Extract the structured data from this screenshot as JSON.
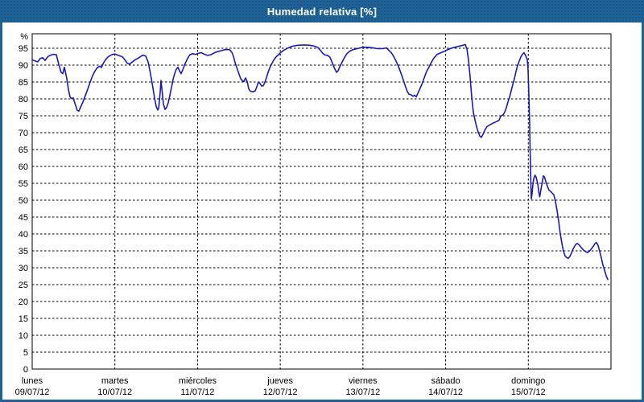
{
  "window": {
    "title": "Humedad relativa [%]"
  },
  "colors": {
    "titlebar_bg": "#1f6396",
    "titlebar_text": "#ffffff",
    "frame_border": "#1f6396",
    "content_bg": "#fdfefd",
    "grid": "#000000",
    "axis": "#000000",
    "line": "#1a1ab8",
    "label_text": "#000000"
  },
  "chart_data": {
    "type": "line",
    "title": "Humedad relativa [%]",
    "y_unit_label": "%",
    "yticks": [
      0,
      5,
      10,
      15,
      20,
      25,
      30,
      35,
      40,
      45,
      50,
      55,
      60,
      65,
      70,
      75,
      80,
      85,
      90,
      95
    ],
    "ylim": [
      0,
      99.3
    ],
    "grid": "dashed",
    "legend_position": "none",
    "x_categories": [
      {
        "day": "lunes",
        "date": "09/07/12"
      },
      {
        "day": "martes",
        "date": "10/07/12"
      },
      {
        "day": "miércoles",
        "date": "11/07/12"
      },
      {
        "day": "jueves",
        "date": "12/07/12"
      },
      {
        "day": "viernes",
        "date": "13/07/12"
      },
      {
        "day": "sábado",
        "date": "14/07/12"
      },
      {
        "day": "domingo",
        "date": "15/07/12"
      }
    ],
    "x_unit": "days_from_start",
    "series": [
      {
        "name": "Humedad relativa",
        "color": "#1a1ab8",
        "points": [
          [
            0.0,
            91.6
          ],
          [
            0.039,
            91.2
          ],
          [
            0.068,
            91.0
          ],
          [
            0.097,
            92.0
          ],
          [
            0.127,
            92.2
          ],
          [
            0.156,
            91.4
          ],
          [
            0.185,
            92.4
          ],
          [
            0.214,
            92.9
          ],
          [
            0.253,
            93.2
          ],
          [
            0.292,
            93.1
          ],
          [
            0.321,
            90.2
          ],
          [
            0.35,
            87.9
          ],
          [
            0.37,
            87.5
          ],
          [
            0.389,
            89.4
          ],
          [
            0.419,
            86.0
          ],
          [
            0.438,
            82.8
          ],
          [
            0.458,
            80.6
          ],
          [
            0.477,
            80.1
          ],
          [
            0.497,
            80.3
          ],
          [
            0.506,
            79.5
          ],
          [
            0.526,
            78.0
          ],
          [
            0.545,
            76.6
          ],
          [
            0.565,
            76.4
          ],
          [
            0.584,
            77.5
          ],
          [
            0.613,
            79.1
          ],
          [
            0.643,
            81.0
          ],
          [
            0.672,
            82.9
          ],
          [
            0.701,
            85.0
          ],
          [
            0.73,
            86.9
          ],
          [
            0.759,
            88.3
          ],
          [
            0.789,
            89.3
          ],
          [
            0.818,
            89.7
          ],
          [
            0.837,
            89.3
          ],
          [
            0.857,
            90.4
          ],
          [
            0.886,
            91.6
          ],
          [
            0.915,
            92.4
          ],
          [
            0.944,
            92.9
          ],
          [
            0.974,
            93.2
          ],
          [
            1.003,
            93.3
          ],
          [
            1.042,
            92.9
          ],
          [
            1.09,
            92.5
          ],
          [
            1.12,
            91.6
          ],
          [
            1.149,
            90.6
          ],
          [
            1.178,
            90.3
          ],
          [
            1.207,
            90.9
          ],
          [
            1.246,
            91.6
          ],
          [
            1.285,
            92.1
          ],
          [
            1.314,
            92.6
          ],
          [
            1.343,
            93.0
          ],
          [
            1.373,
            92.7
          ],
          [
            1.402,
            91.0
          ],
          [
            1.421,
            88.6
          ],
          [
            1.441,
            86.0
          ],
          [
            1.46,
            83.2
          ],
          [
            1.48,
            80.3
          ],
          [
            1.499,
            77.8
          ],
          [
            1.519,
            76.7
          ],
          [
            1.529,
            77.2
          ],
          [
            1.548,
            82.0
          ],
          [
            1.558,
            85.5
          ],
          [
            1.568,
            83.0
          ],
          [
            1.587,
            78.5
          ],
          [
            1.606,
            76.9
          ],
          [
            1.626,
            77.5
          ],
          [
            1.645,
            78.9
          ],
          [
            1.665,
            81.1
          ],
          [
            1.684,
            83.4
          ],
          [
            1.704,
            85.8
          ],
          [
            1.723,
            87.5
          ],
          [
            1.743,
            88.8
          ],
          [
            1.762,
            89.4
          ],
          [
            1.782,
            88.3
          ],
          [
            1.801,
            87.5
          ],
          [
            1.821,
            88.6
          ],
          [
            1.85,
            90.5
          ],
          [
            1.879,
            92.0
          ],
          [
            1.908,
            93.1
          ],
          [
            1.937,
            93.4
          ],
          [
            1.976,
            93.2
          ],
          [
            2.006,
            93.5
          ],
          [
            2.045,
            93.7
          ],
          [
            2.084,
            93.2
          ],
          [
            2.122,
            92.9
          ],
          [
            2.161,
            93.1
          ],
          [
            2.2,
            93.6
          ],
          [
            2.239,
            94.0
          ],
          [
            2.288,
            94.3
          ],
          [
            2.337,
            94.6
          ],
          [
            2.385,
            94.6
          ],
          [
            2.415,
            93.8
          ],
          [
            2.434,
            92.6
          ],
          [
            2.453,
            90.8
          ],
          [
            2.483,
            88.7
          ],
          [
            2.502,
            87.3
          ],
          [
            2.522,
            86.0
          ],
          [
            2.541,
            85.4
          ],
          [
            2.561,
            85.2
          ],
          [
            2.58,
            86.2
          ],
          [
            2.6,
            85.1
          ],
          [
            2.619,
            83.0
          ],
          [
            2.638,
            82.3
          ],
          [
            2.668,
            82.1
          ],
          [
            2.697,
            82.4
          ],
          [
            2.716,
            83.6
          ],
          [
            2.736,
            85.0
          ],
          [
            2.755,
            84.6
          ],
          [
            2.775,
            83.8
          ],
          [
            2.794,
            83.9
          ],
          [
            2.814,
            84.9
          ],
          [
            2.833,
            86.3
          ],
          [
            2.852,
            87.8
          ],
          [
            2.872,
            89.1
          ],
          [
            2.891,
            90.1
          ],
          [
            2.921,
            91.5
          ],
          [
            2.95,
            92.5
          ],
          [
            2.979,
            93.1
          ],
          [
            3.008,
            93.8
          ],
          [
            3.047,
            94.5
          ],
          [
            3.096,
            95.1
          ],
          [
            3.145,
            95.6
          ],
          [
            3.213,
            95.9
          ],
          [
            3.291,
            96.0
          ],
          [
            3.359,
            95.9
          ],
          [
            3.417,
            95.6
          ],
          [
            3.456,
            95.2
          ],
          [
            3.485,
            94.4
          ],
          [
            3.515,
            93.5
          ],
          [
            3.544,
            93.0
          ],
          [
            3.573,
            92.9
          ],
          [
            3.602,
            92.3
          ],
          [
            3.621,
            91.2
          ],
          [
            3.641,
            90.0
          ],
          [
            3.66,
            88.9
          ],
          [
            3.68,
            87.9
          ],
          [
            3.699,
            88.3
          ],
          [
            3.719,
            89.5
          ],
          [
            3.748,
            90.9
          ],
          [
            3.777,
            92.3
          ],
          [
            3.806,
            93.4
          ],
          [
            3.845,
            94.2
          ],
          [
            3.894,
            94.7
          ],
          [
            3.943,
            95.0
          ],
          [
            4.001,
            95.3
          ],
          [
            4.06,
            95.3
          ],
          [
            4.118,
            95.1
          ],
          [
            4.177,
            94.9
          ],
          [
            4.235,
            94.9
          ],
          [
            4.284,
            95.1
          ],
          [
            4.313,
            94.4
          ],
          [
            4.342,
            93.7
          ],
          [
            4.371,
            92.6
          ],
          [
            4.401,
            91.2
          ],
          [
            4.43,
            89.6
          ],
          [
            4.459,
            87.7
          ],
          [
            4.488,
            85.6
          ],
          [
            4.517,
            83.5
          ],
          [
            4.537,
            82.2
          ],
          [
            4.556,
            81.4
          ],
          [
            4.585,
            81.2
          ],
          [
            4.605,
            80.8
          ],
          [
            4.624,
            81.1
          ],
          [
            4.644,
            80.6
          ],
          [
            4.663,
            81.6
          ],
          [
            4.683,
            82.7
          ],
          [
            4.712,
            84.3
          ],
          [
            4.741,
            86.3
          ],
          [
            4.77,
            88.1
          ],
          [
            4.8,
            89.5
          ],
          [
            4.829,
            90.9
          ],
          [
            4.858,
            92.1
          ],
          [
            4.897,
            93.2
          ],
          [
            4.936,
            93.6
          ],
          [
            4.975,
            94.0
          ],
          [
            5.014,
            94.5
          ],
          [
            5.063,
            95.0
          ],
          [
            5.111,
            95.3
          ],
          [
            5.16,
            95.6
          ],
          [
            5.209,
            95.9
          ],
          [
            5.238,
            96.1
          ],
          [
            5.257,
            94.8
          ],
          [
            5.277,
            91.5
          ],
          [
            5.296,
            86.5
          ],
          [
            5.316,
            80.5
          ],
          [
            5.335,
            76.0
          ],
          [
            5.355,
            73.8
          ],
          [
            5.374,
            71.8
          ],
          [
            5.394,
            70.2
          ],
          [
            5.413,
            69.0
          ],
          [
            5.432,
            68.6
          ],
          [
            5.452,
            69.5
          ],
          [
            5.471,
            70.6
          ],
          [
            5.501,
            71.8
          ],
          [
            5.539,
            72.4
          ],
          [
            5.578,
            72.9
          ],
          [
            5.617,
            73.3
          ],
          [
            5.647,
            73.7
          ],
          [
            5.666,
            74.9
          ],
          [
            5.695,
            75.3
          ],
          [
            5.715,
            76.1
          ],
          [
            5.734,
            77.4
          ],
          [
            5.754,
            79.1
          ],
          [
            5.773,
            80.5
          ],
          [
            5.793,
            82.4
          ],
          [
            5.812,
            84.3
          ],
          [
            5.832,
            86.0
          ],
          [
            5.851,
            88.1
          ],
          [
            5.87,
            89.9
          ],
          [
            5.89,
            91.2
          ],
          [
            5.909,
            92.4
          ],
          [
            5.929,
            93.2
          ],
          [
            5.948,
            93.7
          ],
          [
            5.968,
            92.8
          ],
          [
            5.987,
            91.6
          ],
          [
            5.997,
            88.5
          ],
          [
            6.007,
            81.0
          ],
          [
            6.016,
            73.0
          ],
          [
            6.021,
            66.0
          ],
          [
            6.026,
            60.2
          ],
          [
            6.031,
            54.5
          ],
          [
            6.036,
            50.4
          ],
          [
            6.046,
            52.0
          ],
          [
            6.055,
            54.5
          ],
          [
            6.065,
            56.3
          ],
          [
            6.08,
            57.4
          ],
          [
            6.094,
            56.9
          ],
          [
            6.114,
            54.9
          ],
          [
            6.128,
            52.3
          ],
          [
            6.138,
            51.0
          ],
          [
            6.153,
            53.2
          ],
          [
            6.172,
            55.9
          ],
          [
            6.182,
            57.2
          ],
          [
            6.196,
            56.9
          ],
          [
            6.211,
            55.6
          ],
          [
            6.231,
            54.1
          ],
          [
            6.25,
            53.0
          ],
          [
            6.279,
            52.4
          ],
          [
            6.309,
            51.6
          ],
          [
            6.328,
            49.6
          ],
          [
            6.347,
            47.1
          ],
          [
            6.367,
            43.8
          ],
          [
            6.386,
            40.2
          ],
          [
            6.406,
            37.2
          ],
          [
            6.425,
            34.9
          ],
          [
            6.445,
            33.5
          ],
          [
            6.464,
            33.0
          ],
          [
            6.484,
            32.8
          ],
          [
            6.503,
            33.4
          ],
          [
            6.523,
            34.4
          ],
          [
            6.542,
            35.6
          ],
          [
            6.571,
            36.8
          ],
          [
            6.591,
            37.2
          ],
          [
            6.61,
            36.9
          ],
          [
            6.639,
            36.0
          ],
          [
            6.669,
            35.2
          ],
          [
            6.698,
            34.7
          ],
          [
            6.717,
            34.5
          ],
          [
            6.746,
            35.1
          ],
          [
            6.776,
            36.0
          ],
          [
            6.805,
            37.1
          ],
          [
            6.824,
            37.5
          ],
          [
            6.844,
            36.6
          ],
          [
            6.863,
            34.9
          ],
          [
            6.883,
            32.9
          ],
          [
            6.902,
            30.9
          ],
          [
            6.922,
            29.3
          ],
          [
            6.941,
            27.7
          ],
          [
            6.961,
            26.5
          ]
        ]
      }
    ]
  }
}
